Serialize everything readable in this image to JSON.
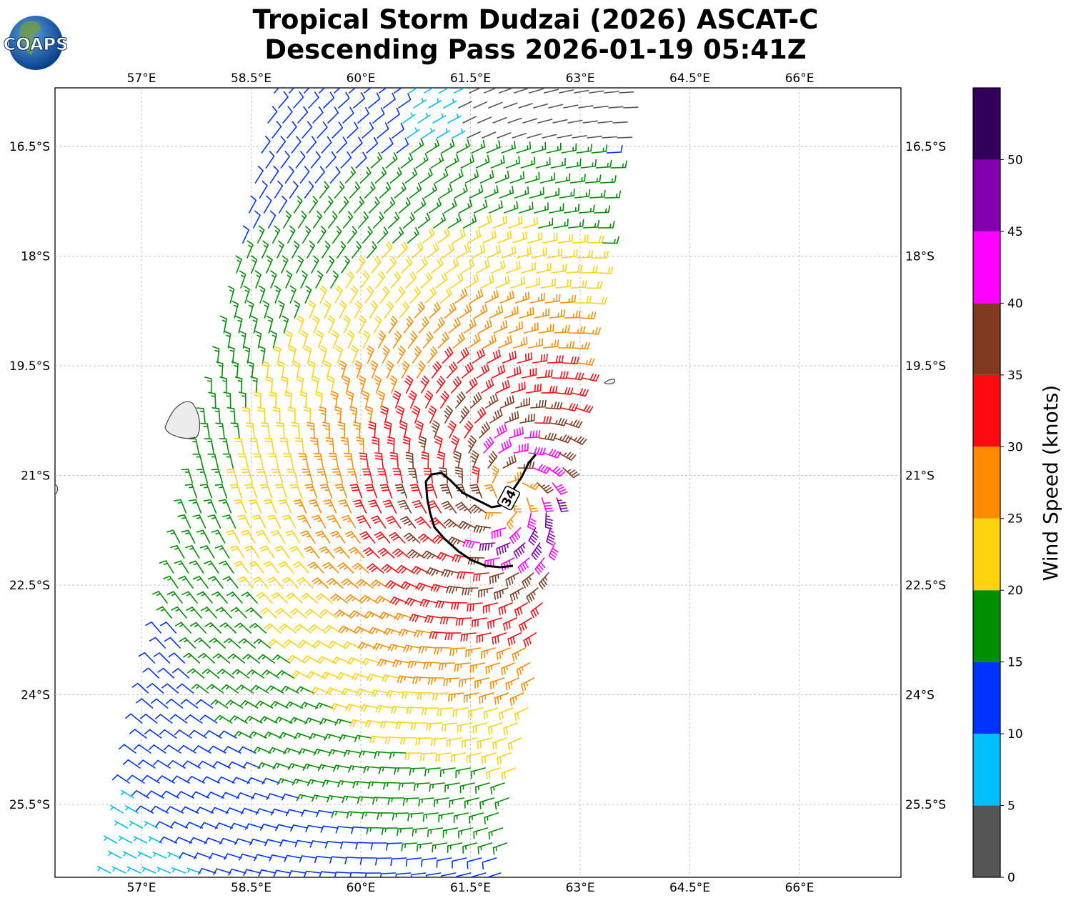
{
  "title_line1": "Tropical Storm Dudzai (2026) ASCAT-C",
  "title_line2": "Descending Pass 2026-01-19 05:41Z",
  "logo_text": "COAPS",
  "map": {
    "lon_ticks": [
      "57°E",
      "58.5°E",
      "60°E",
      "61.5°E",
      "63°E",
      "64.5°E",
      "66°E"
    ],
    "lat_ticks": [
      "16.5°S",
      "18°S",
      "19.5°S",
      "21°S",
      "22.5°S",
      "24°S",
      "25.5°S"
    ],
    "contour_label": "34",
    "grid": true
  },
  "colorbar": {
    "label": "Wind Speed (knots)",
    "ticks": [
      "0",
      "5",
      "10",
      "15",
      "20",
      "25",
      "30",
      "35",
      "40",
      "45",
      "50"
    ],
    "bins": [
      {
        "range": [
          0,
          5
        ],
        "color": "#555555"
      },
      {
        "range": [
          5,
          10
        ],
        "color": "#00bfff"
      },
      {
        "range": [
          10,
          15
        ],
        "color": "#0033ff"
      },
      {
        "range": [
          15,
          20
        ],
        "color": "#008f00"
      },
      {
        "range": [
          20,
          25
        ],
        "color": "#ffd310"
      },
      {
        "range": [
          25,
          30
        ],
        "color": "#ff8c00"
      },
      {
        "range": [
          30,
          35
        ],
        "color": "#ff0a10"
      },
      {
        "range": [
          35,
          40
        ],
        "color": "#7f3a20"
      },
      {
        "range": [
          40,
          45
        ],
        "color": "#ff00ff"
      },
      {
        "range": [
          45,
          50
        ],
        "color": "#8000b0"
      },
      {
        "range": [
          50,
          55
        ],
        "color": "#30005a"
      }
    ]
  },
  "storm_center": {
    "lon": 62.0,
    "lat": -21.3
  }
}
